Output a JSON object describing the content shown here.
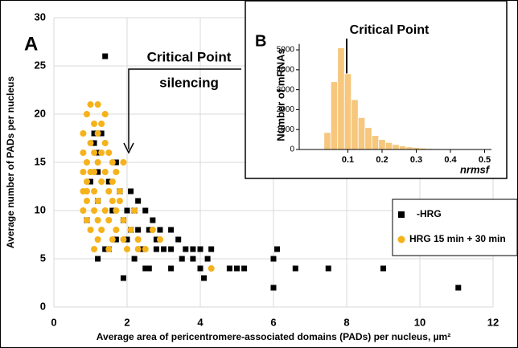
{
  "chart_data": [
    {
      "type": "scatter",
      "panel_label": "A",
      "annotations": [
        "Critical Point",
        "silencing"
      ],
      "x_label": "Average area  of pericentromere-associated domains (PADs) per nucleus, µm²",
      "y_label": "Average number of PADs per nucleus",
      "xlim": [
        0,
        12
      ],
      "ylim": [
        0,
        30
      ],
      "xticks": [
        0,
        2,
        4,
        6,
        8,
        10,
        12
      ],
      "yticks": [
        0,
        5,
        10,
        15,
        20,
        25,
        30
      ],
      "grid": true,
      "legend": "right",
      "series": [
        {
          "name": "-HRG",
          "color": "#000000",
          "marker": "square",
          "x": [
            1.4,
            1.9,
            6,
            11.05,
            9,
            7.5,
            6.6,
            6.1,
            6,
            5.2,
            5,
            4.8,
            4.1,
            4,
            4.2,
            3.6,
            3.5,
            3.2,
            2.6,
            2.5,
            2.2,
            2.4,
            3,
            3.2,
            2.8,
            4,
            3.8,
            1.2,
            1.5,
            1.7,
            2,
            2.3,
            2.6,
            2.7,
            2.9,
            3.2,
            3.4,
            2,
            2.2,
            2.5,
            2.3,
            1.8,
            2.1,
            1.5,
            1.2,
            1.1,
            1.3,
            1.2,
            1,
            1.6,
            1.9,
            2.1,
            2.8,
            1.4,
            1.2,
            0.9,
            1.7,
            1.1,
            3.8,
            4.3
          ],
          "values": [
            26,
            3,
            2,
            2,
            4,
            4,
            4,
            6,
            5,
            4,
            4,
            4,
            3,
            4,
            5,
            6,
            5,
            4,
            4,
            4,
            5,
            6,
            6,
            6,
            7,
            6,
            6,
            5,
            6,
            7,
            7,
            8,
            8,
            9,
            8,
            8,
            7,
            10,
            10,
            10,
            11,
            12,
            12,
            13,
            14,
            17,
            18,
            16,
            13,
            10,
            9,
            8,
            6,
            6,
            11,
            9,
            15,
            18,
            5,
            6
          ]
        },
        {
          "name": "HRG 15 min + 30 min",
          "color": "#f5b21b",
          "marker": "circle",
          "x": [
            1,
            1.2,
            1.4,
            0.9,
            1.1,
            1.3,
            0.8,
            1.2,
            1,
            1.4,
            0.8,
            1.1,
            1.5,
            0.9,
            1.2,
            1.6,
            1.9,
            0.8,
            1.1,
            1.4,
            1.7,
            0.9,
            1.3,
            1.6,
            0.8,
            1.1,
            1.5,
            1.8,
            0.9,
            1.2,
            1.6,
            0.8,
            1.1,
            1.4,
            1.7,
            2.2,
            0.9,
            1.2,
            1.5,
            1.9,
            1,
            1.3,
            1.7,
            2.1,
            1.2,
            1.6,
            1.9,
            2.3,
            1.1,
            1.5,
            2,
            2.3,
            2.5,
            4.3,
            0.9,
            1.3,
            1,
            1.8,
            2.7,
            2.9
          ],
          "values": [
            21,
            21,
            20,
            20,
            19,
            19,
            18,
            18,
            17,
            17,
            16,
            16,
            16,
            15,
            15,
            15,
            15,
            14,
            14,
            14,
            14,
            13,
            13,
            13,
            12,
            12,
            12,
            12,
            11,
            11,
            11,
            10,
            10,
            10,
            10,
            10,
            9,
            9,
            9,
            9,
            8,
            8,
            8,
            8,
            7,
            7,
            7,
            7,
            6,
            6,
            6,
            6,
            6,
            4,
            12,
            16,
            14,
            11,
            8,
            7
          ]
        }
      ]
    },
    {
      "type": "histogram",
      "panel_label": "B",
      "annotation": "Critical Point",
      "x_label": "nrmsf",
      "y_label": "Number of mRNAs",
      "color": "#f6c77c",
      "xlim": [
        0,
        0.52
      ],
      "ylim": [
        0,
        5300
      ],
      "xticks": [
        0.1,
        0.2,
        0.3,
        0.4,
        0.5
      ],
      "yticks": [
        0,
        1000,
        2000,
        3000,
        4000,
        5000
      ],
      "bins": [
        0.03,
        0.05,
        0.07,
        0.09,
        0.11,
        0.13,
        0.15,
        0.17,
        0.19,
        0.21,
        0.23,
        0.25,
        0.27,
        0.29,
        0.31,
        0.33,
        0.35,
        0.37,
        0.39,
        0.41,
        0.43,
        0.45,
        0.47,
        0.49,
        0.51
      ],
      "counts": [
        850,
        3400,
        5100,
        3800,
        2500,
        1600,
        1100,
        700,
        500,
        350,
        250,
        180,
        130,
        100,
        70,
        50,
        40,
        30,
        20,
        15,
        10,
        8,
        5,
        3
      ]
    }
  ]
}
